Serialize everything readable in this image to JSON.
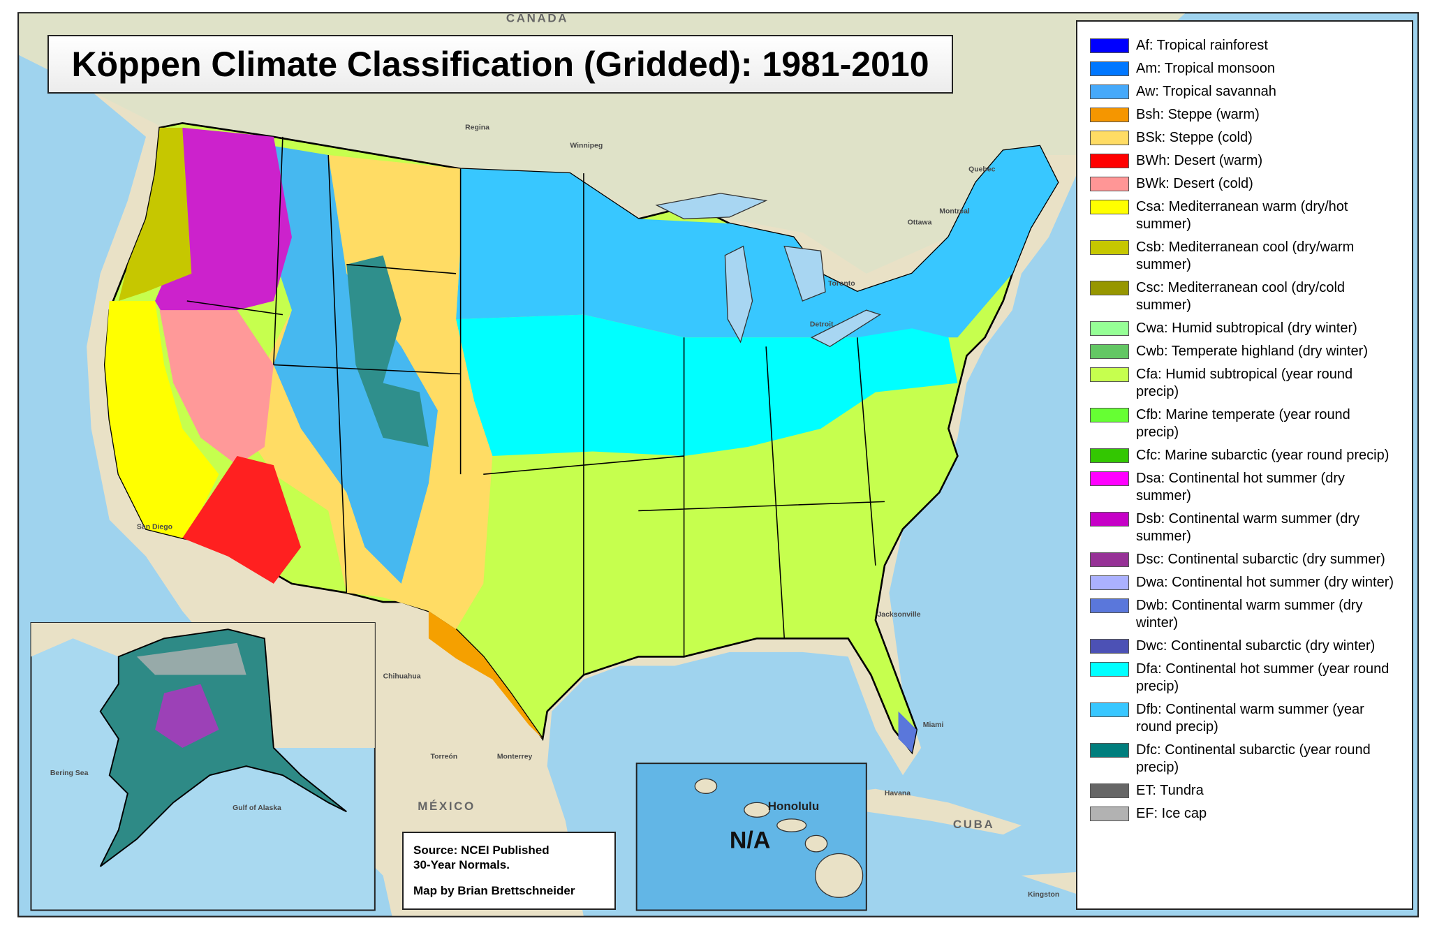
{
  "title": "Köppen Climate Classification (Gridded): 1981-2010",
  "legend": [
    {
      "label": "Af: Tropical rainforest",
      "color": "#0000fe"
    },
    {
      "label": "Am: Tropical monsoon",
      "color": "#0077ff"
    },
    {
      "label": "Aw: Tropical savannah",
      "color": "#46a9fa"
    },
    {
      "label": "Bsh: Steppe (warm)",
      "color": "#f59600"
    },
    {
      "label": "BSk: Steppe (cold)",
      "color": "#ffdc64"
    },
    {
      "label": "BWh: Desert (warm)",
      "color": "#ff0000"
    },
    {
      "label": "BWk: Desert (cold)",
      "color": "#ff9696"
    },
    {
      "label": "Csa: Mediterranean warm (dry/hot summer)",
      "color": "#ffff00"
    },
    {
      "label": "Csb: Mediterranean cool (dry/warm summer)",
      "color": "#c6c700"
    },
    {
      "label": "Csc: Mediterranean cool (dry/cold summer)",
      "color": "#969600"
    },
    {
      "label": "Cwa: Humid subtropical (dry winter)",
      "color": "#96ff96"
    },
    {
      "label": "Cwb: Temperate highland (dry winter)",
      "color": "#63c764"
    },
    {
      "label": "Cfa: Humid subtropical (year round precip)",
      "color": "#c6ff4e"
    },
    {
      "label": "Cfb: Marine temperate (year round precip)",
      "color": "#66ff33"
    },
    {
      "label": "Cfc: Marine subarctic (year round precip)",
      "color": "#33c701"
    },
    {
      "label": "Dsa: Continental hot summer (dry summer)",
      "color": "#ff00ff"
    },
    {
      "label": "Dsb: Continental warm summer (dry summer)",
      "color": "#c600c7"
    },
    {
      "label": "Dsc: Continental subarctic (dry summer)",
      "color": "#963296"
    },
    {
      "label": "Dwa: Continental hot summer (dry winter)",
      "color": "#abb1ff"
    },
    {
      "label": "Dwb: Continental warm summer (dry winter)",
      "color": "#5a77db"
    },
    {
      "label": "Dwc: Continental subarctic (dry winter)",
      "color": "#4c51b5"
    },
    {
      "label": "Dfa: Continental hot summer (year round precip)",
      "color": "#00ffff"
    },
    {
      "label": "Dfb: Continental warm summer (year round precip)",
      "color": "#38c7ff"
    },
    {
      "label": "Dfc: Continental subarctic (year round precip)",
      "color": "#007e7d"
    },
    {
      "label": "ET: Tundra",
      "color": "#666666"
    },
    {
      "label": "EF: Ice cap",
      "color": "#b2b2b2"
    }
  ],
  "source": [
    "Source: NCEI Published",
    "30-Year Normals.",
    "Map by Brian Brettschneider"
  ],
  "hawaii_inset": {
    "label": "N/A",
    "city": "Honolulu"
  },
  "map_labels": [
    "CANADA",
    "Regina",
    "Winnipeg",
    "Quebec",
    "Montreal",
    "Ottawa",
    "Toronto",
    "Detroit",
    "Jacksonville",
    "Miami",
    "Havana",
    "CUBA",
    "Kingston",
    "MÉXICO",
    "Chihuahua",
    "Torreón",
    "Monterrey",
    "San Diego",
    "Bering Sea",
    "Gulf of Alaska"
  ]
}
